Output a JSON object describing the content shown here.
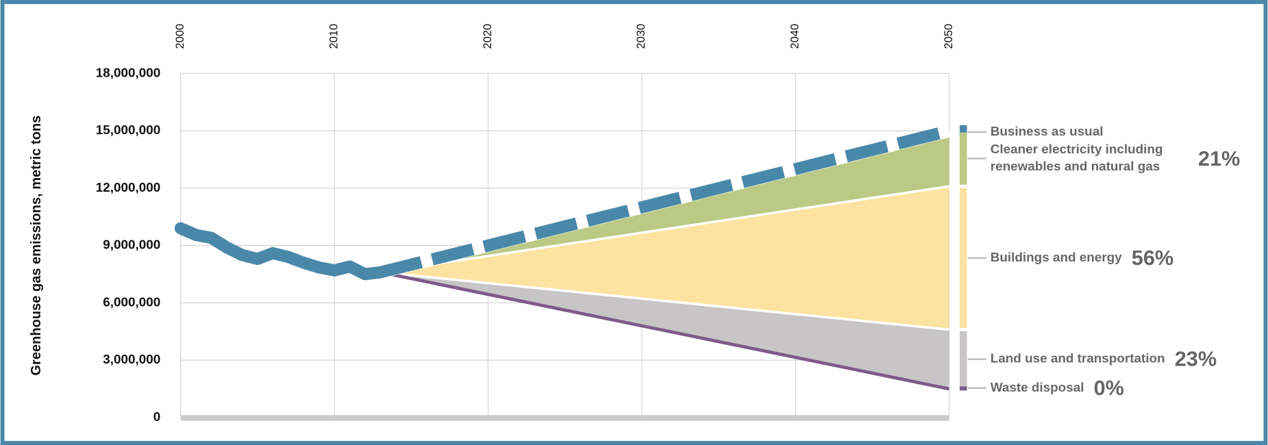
{
  "chart_data": {
    "type": "area",
    "y_label": "Greenhouse gas emissions, metric tons",
    "xlim": [
      2000,
      2050
    ],
    "xticks": [
      2000,
      2010,
      2020,
      2030,
      2040,
      2050
    ],
    "ylim": [
      0,
      18000000
    ],
    "yticks": [
      0,
      {
        "value": 3000000,
        "label": "3,000,000"
      },
      {
        "value": 6000000,
        "label": "6,000,000"
      },
      {
        "value": 9000000,
        "label": "9,000,000"
      },
      {
        "value": 12000000,
        "label": "12,000,000"
      },
      {
        "value": 15000000,
        "label": "15,000,000"
      },
      {
        "value": 18000000,
        "label": "18,000,000"
      }
    ],
    "grid": true,
    "history": {
      "color": "#4a88aa",
      "x": [
        2000,
        2001,
        2002,
        2003,
        2004,
        2005,
        2006,
        2007,
        2008,
        2009,
        2010,
        2011,
        2012,
        2013
      ],
      "values": [
        9900000,
        9550000,
        9400000,
        8900000,
        8500000,
        8300000,
        8600000,
        8400000,
        8100000,
        7850000,
        7700000,
        7900000,
        7500000,
        7600000
      ]
    },
    "x": [
      2013,
      2050
    ],
    "series": [
      {
        "name": "Business as usual",
        "color": "#4a88aa",
        "kind": "dashed-line",
        "values": [
          7600000,
          15000000
        ]
      },
      {
        "name": "Cleaner electricity including renewables and natural gas",
        "color": "#bcc985",
        "kind": "stacked-area",
        "values": [
          0,
          2900000
        ],
        "share": 21,
        "share_label": "21%"
      },
      {
        "name": "Buildings and energy",
        "color": "#fde3a1",
        "kind": "stacked-area",
        "values": [
          0,
          7500000
        ],
        "share": 56,
        "share_label": "56%"
      },
      {
        "name": "Land use and transportation",
        "color": "#c7c5c6",
        "kind": "stacked-area",
        "values": [
          0,
          3100000
        ],
        "share": 23,
        "share_label": "23%"
      },
      {
        "name": "Waste disposal",
        "color": "#7e5a8a",
        "kind": "base-line",
        "values": [
          7600000,
          1500000
        ],
        "share": 0,
        "share_label": "0%"
      }
    ]
  }
}
